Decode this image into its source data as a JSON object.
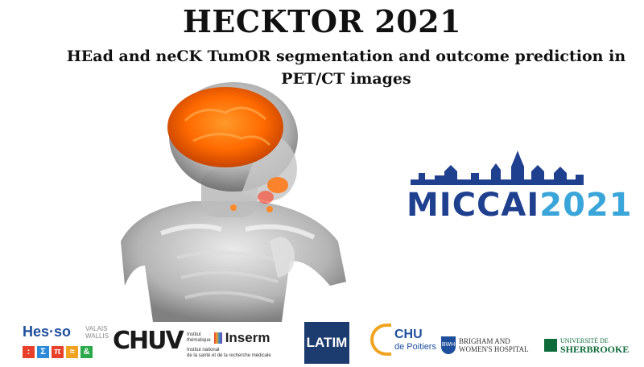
{
  "header": {
    "title": "HECKTOR 2021",
    "subtitle_line1": "HEad and neCK TumOR segmentation and outcome prediction in",
    "subtitle_line2": "PET/CT images"
  },
  "miccai": {
    "prefix": "MICCAI",
    "year": "2021"
  },
  "logos": {
    "hes": {
      "name": "Hes·so",
      "region1": "VALAIS",
      "region2": "WALLIS",
      "glyphs": [
        ":",
        "Σ",
        "π",
        "≈",
        "&"
      ]
    },
    "chuv": {
      "name": "CHUV"
    },
    "inserm": {
      "label1": "Institut",
      "label2": "thématique",
      "name": "Inserm",
      "sub1": "Institut national",
      "sub2": "de la santé et de la recherche médicale"
    },
    "latim": {
      "name": "LATIM"
    },
    "chu": {
      "name": "CHU",
      "sub": "de Poitiers"
    },
    "bwh": {
      "abbr": "BWH",
      "line1": "BRIGHAM AND",
      "line2": "WOMEN'S HOSPITAL"
    },
    "sherbrooke": {
      "line1": "UNIVERSITÉ DE",
      "line2": "SHERBROOKE"
    }
  },
  "colors": {
    "brain": "#ff6a00",
    "tumor": "#ff3b1f",
    "miccai_blue": "#1f3f8f",
    "miccai_light": "#3aa5d8"
  }
}
